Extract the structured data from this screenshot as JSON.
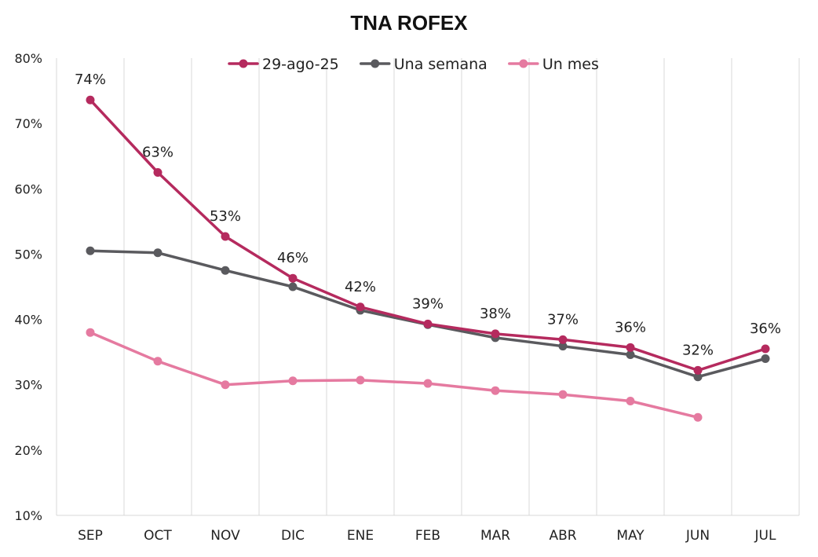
{
  "chart_data": {
    "type": "line",
    "title": "TNA ROFEX",
    "xlabel": "",
    "ylabel": "",
    "categories": [
      "SEP",
      "OCT",
      "NOV",
      "DIC",
      "ENE",
      "FEB",
      "MAR",
      "ABR",
      "MAY",
      "JUN",
      "JUL"
    ],
    "ylim": [
      0.1,
      0.8
    ],
    "yticks": [
      {
        "value": 0.1,
        "label": "10%"
      },
      {
        "value": 0.2,
        "label": "20%"
      },
      {
        "value": 0.3,
        "label": "30%"
      },
      {
        "value": 0.4,
        "label": "40%"
      },
      {
        "value": 0.5,
        "label": "50%"
      },
      {
        "value": 0.6,
        "label": "60%"
      },
      {
        "value": 0.7,
        "label": "70%"
      },
      {
        "value": 0.8,
        "label": "80%"
      }
    ],
    "grid": "vertical",
    "legend": "top",
    "series": [
      {
        "name": "29-ago-25",
        "color": "#b52a5e",
        "values": [
          0.736,
          0.625,
          0.527,
          0.463,
          0.419,
          0.393,
          0.378,
          0.369,
          0.357,
          0.322,
          0.355
        ],
        "data_labels": [
          "74%",
          "63%",
          "53%",
          "46%",
          "42%",
          "39%",
          "38%",
          "37%",
          "36%",
          "32%",
          "36%"
        ]
      },
      {
        "name": "Una semana",
        "color": "#5a5a5e",
        "values": [
          0.505,
          0.502,
          0.475,
          0.45,
          0.414,
          0.392,
          0.372,
          0.359,
          0.346,
          0.312,
          0.34
        ]
      },
      {
        "name": "Un mes",
        "color": "#e57aa0",
        "values": [
          0.38,
          0.336,
          0.3,
          0.306,
          0.307,
          0.302,
          0.291,
          0.285,
          0.275,
          0.25,
          null
        ]
      }
    ]
  }
}
